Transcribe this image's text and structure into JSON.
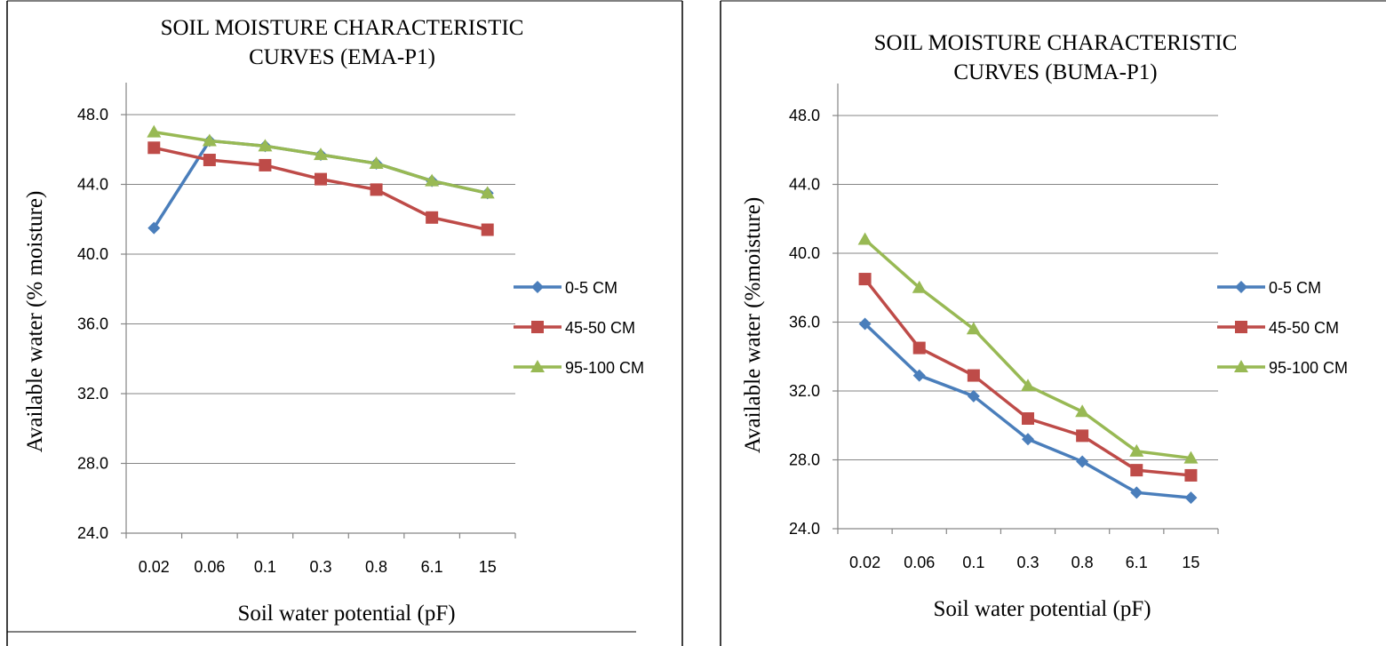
{
  "chart_data": [
    {
      "type": "line",
      "title_lines": [
        "SOIL MOISTURE CHARACTERISTIC",
        "CURVES (EMA-P1)"
      ],
      "xlabel": "Soil water potential (pF)",
      "ylabel": "Available water (% moisture)",
      "categories": [
        "0.02",
        "0.06",
        "0.1",
        "0.3",
        "0.8",
        "6.1",
        "15"
      ],
      "ylim": [
        24.0,
        48.0
      ],
      "yticks": [
        "24.0",
        "28.0",
        "32.0",
        "36.0",
        "40.0",
        "44.0",
        "48.0"
      ],
      "grid": true,
      "legend_position": "right",
      "series": [
        {
          "name": "0-5 CM",
          "color": "#4a7ebb",
          "marker": "diamond",
          "values": [
            41.5,
            46.5,
            46.2,
            45.7,
            45.2,
            44.2,
            43.5
          ]
        },
        {
          "name": "45-50 CM",
          "color": "#be4b48",
          "marker": "square",
          "values": [
            46.1,
            45.4,
            45.1,
            44.3,
            43.7,
            42.1,
            41.4
          ]
        },
        {
          "name": "95-100 CM",
          "color": "#98b954",
          "marker": "triangle",
          "values": [
            47.0,
            46.5,
            46.2,
            45.7,
            45.2,
            44.2,
            43.5
          ]
        }
      ]
    },
    {
      "type": "line",
      "title_lines": [
        "SOIL MOISTURE CHARACTERISTIC",
        "CURVES (BUMA-P1)"
      ],
      "xlabel": "Soil water potential (pF)",
      "ylabel": "Available water (%moisture)",
      "categories": [
        "0.02",
        "0.06",
        "0.1",
        "0.3",
        "0.8",
        "6.1",
        "15"
      ],
      "ylim": [
        24.0,
        48.0
      ],
      "yticks": [
        "24.0",
        "28.0",
        "32.0",
        "36.0",
        "40.0",
        "44.0",
        "48.0"
      ],
      "grid": true,
      "legend_position": "right",
      "series": [
        {
          "name": "0-5 CM",
          "color": "#4a7ebb",
          "marker": "diamond",
          "values": [
            35.9,
            32.9,
            31.7,
            29.2,
            27.9,
            26.1,
            25.8
          ]
        },
        {
          "name": "45-50 CM",
          "color": "#be4b48",
          "marker": "square",
          "values": [
            38.5,
            34.5,
            32.9,
            30.4,
            29.4,
            27.4,
            27.1
          ]
        },
        {
          "name": "95-100 CM",
          "color": "#98b954",
          "marker": "triangle",
          "values": [
            40.8,
            38.0,
            35.6,
            32.3,
            30.8,
            28.5,
            28.1
          ]
        }
      ]
    }
  ]
}
